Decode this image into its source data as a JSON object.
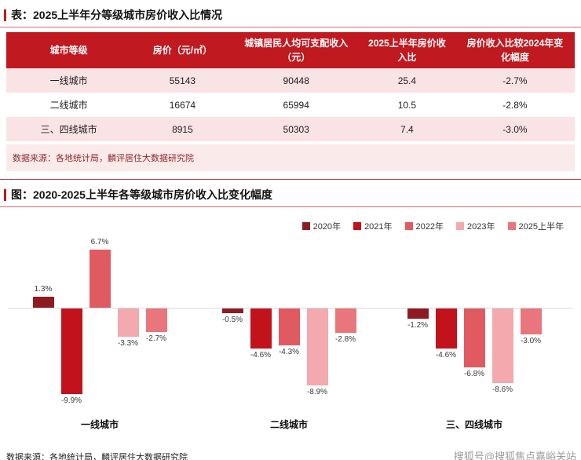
{
  "table_section": {
    "title": "表：2025上半年分等级城市房价收入比情况",
    "columns": [
      "城市等级",
      "房价（元/㎡）",
      "城镇居民人均可支配收入（元）",
      "2025上半年房价收入比",
      "房价收入比较2024年变化幅度"
    ],
    "rows": [
      [
        "一线城市",
        "55143",
        "90448",
        "25.4",
        "-2.7%"
      ],
      [
        "二线城市",
        "16674",
        "65994",
        "10.5",
        "-2.8%"
      ],
      [
        "三、四线城市",
        "8915",
        "50303",
        "7.4",
        "-3.0%"
      ]
    ],
    "source": "数据来源：各地统计局，麟评居住大数据研究院"
  },
  "chart_section": {
    "title": "图：2020-2025上半年各等级城市房价收入比变化幅度",
    "source": "数据来源：各地统计局，麟评居住大数据研究院",
    "watermark": "搜狐号@搜狐焦点嘉峪关站"
  },
  "chart_data": {
    "type": "bar",
    "title": "2020-2025上半年各等级城市房价收入比变化幅度",
    "categories": [
      "一线城市",
      "二线城市",
      "三、四线城市"
    ],
    "series": [
      {
        "name": "2020年",
        "color": "#8E1B22",
        "values": [
          1.3,
          -0.5,
          -1.2
        ]
      },
      {
        "name": "2021年",
        "color": "#C2121C",
        "values": [
          -9.9,
          -4.6,
          -4.6
        ]
      },
      {
        "name": "2022年",
        "color": "#E05A62",
        "values": [
          6.7,
          -4.3,
          -6.8
        ]
      },
      {
        "name": "2023年",
        "color": "#F3A9AD",
        "values": [
          -3.3,
          -8.9,
          -8.6
        ]
      },
      {
        "name": "2025上半年",
        "color": "#E8767C",
        "values": [
          -2.7,
          -2.8,
          -3.0
        ]
      }
    ],
    "unit": "%",
    "ylim": [
      -10,
      7
    ],
    "baseline": 0,
    "grid": false,
    "legend_position": "top-right"
  },
  "colors": {
    "header_bg": "#C01920",
    "row_pink": "#FAE3E4",
    "accent_red": "#C01920"
  }
}
